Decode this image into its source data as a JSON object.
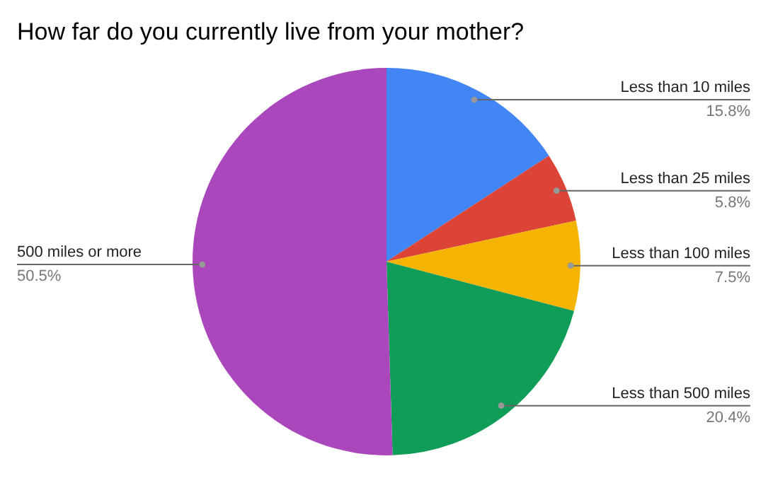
{
  "chart_data": {
    "type": "pie",
    "title": "How far do you currently live from your mother?",
    "categories": [
      "Less than 10 miles",
      "Less than 25 miles",
      "Less than 100 miles",
      "Less than 500 miles",
      "500 miles or more"
    ],
    "values": [
      15.8,
      5.8,
      7.5,
      20.4,
      50.5
    ],
    "colors": [
      "#4285f4",
      "#db4437",
      "#f4b400",
      "#0f9d58",
      "#ab47bc"
    ],
    "value_labels": [
      "15.8%",
      "5.8%",
      "7.5%",
      "20.4%",
      "50.5%"
    ],
    "legend": false
  }
}
